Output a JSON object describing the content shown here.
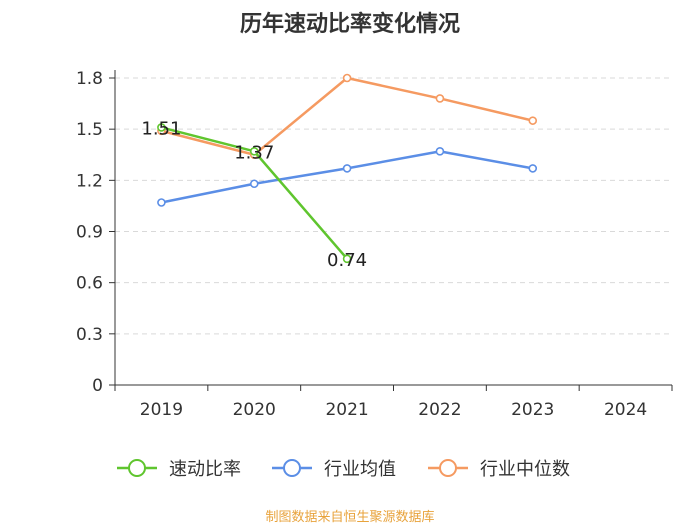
{
  "chart_data": {
    "type": "line",
    "title": "历年速动比率变化情况",
    "categories": [
      "2019",
      "2020",
      "2021",
      "2022",
      "2023",
      "2024"
    ],
    "ylim": [
      0,
      1.8
    ],
    "yticks": [
      "0",
      "0.3",
      "0.6",
      "0.9",
      "1.2",
      "1.5",
      "1.8"
    ],
    "series": [
      {
        "name": "速动比率",
        "color": "#5fc52e",
        "values": [
          1.51,
          1.37,
          0.74,
          null,
          null,
          null
        ],
        "labels": [
          "1.51",
          "1.37",
          "0.74"
        ]
      },
      {
        "name": "行业均值",
        "color": "#5b8ee6",
        "values": [
          1.07,
          1.18,
          1.27,
          1.37,
          1.27,
          null
        ]
      },
      {
        "name": "行业中位数",
        "color": "#f59a61",
        "values": [
          1.49,
          1.35,
          1.8,
          1.68,
          1.55,
          null
        ]
      }
    ],
    "legend_position": "bottom",
    "source": "制图数据来自恒生聚源数据库"
  }
}
